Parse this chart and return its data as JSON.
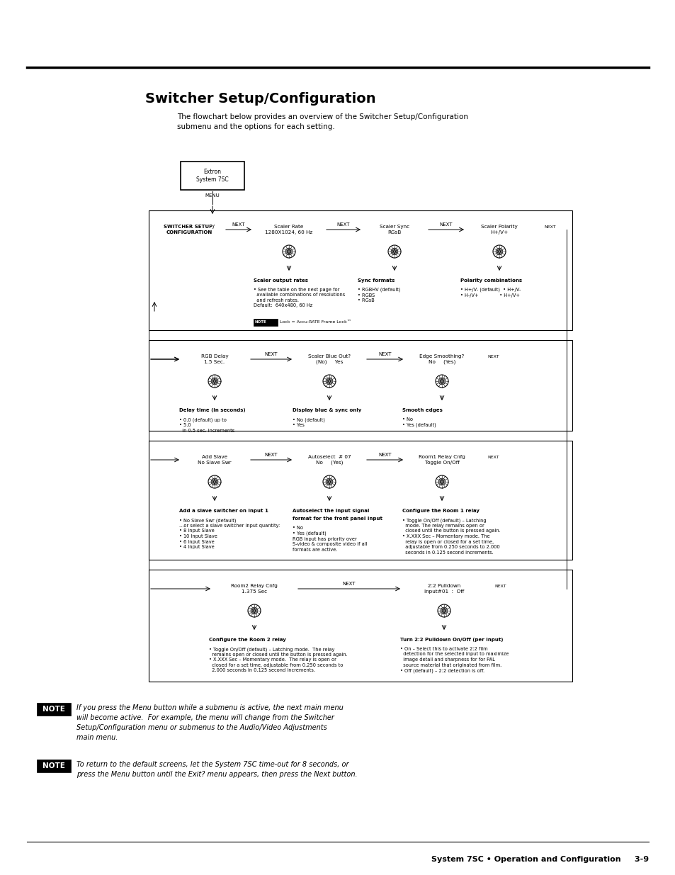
{
  "bg_color": "#ffffff",
  "page_width": 9.54,
  "page_height": 12.35,
  "title": "Switcher Setup/Configuration",
  "intro_text": "The flowchart below provides an overview of the Switcher Setup/Configuration\nsubmenu and the options for each setting.",
  "footer_left": "System 7SC • Operation and Configuration",
  "footer_right": "3-9",
  "note1_text": "If you press the Menu button while a submenu is active, the next main menu\nwill become active.  For example, the menu will change from the Switcher\nSetup/Configuration menu or submenus to the Audio/Video Adjustments\nmain menu.",
  "note2_text": "To return to the default screens, let the System 7SC time-out for 8 seconds, or\npress the Menu button until the Exit? menu appears, then press the Next button."
}
